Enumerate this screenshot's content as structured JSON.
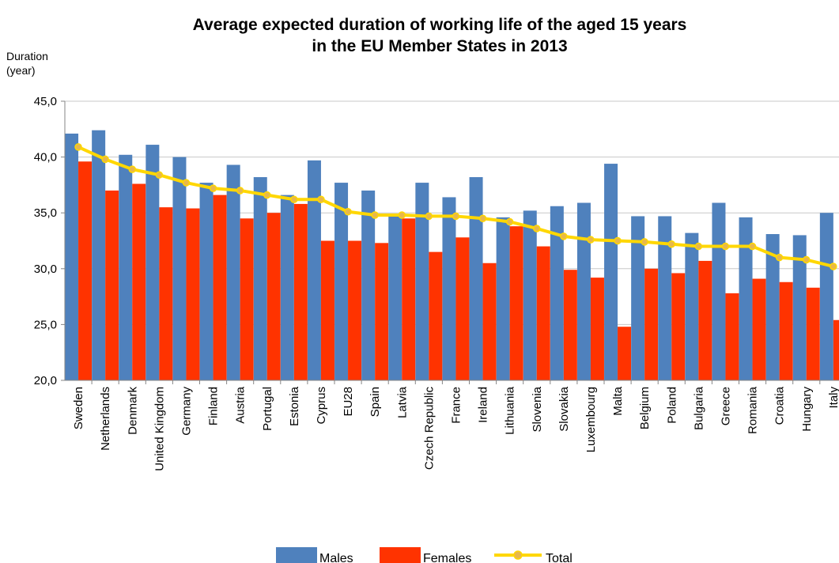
{
  "chart_data": {
    "type": "bar",
    "title_line1": "Average expected duration of working life of the aged 15 years",
    "title_line2": "in the EU Member States in 2013",
    "ylabel_line1": "Duration",
    "ylabel_line2": "(year)",
    "xlabel": "",
    "ylim": [
      20,
      45
    ],
    "yticks": [
      "45,0",
      "40,0",
      "35,0",
      "30,0",
      "25,0",
      "20,0"
    ],
    "grid": true,
    "legend_position": "bottom",
    "categories": [
      "Sweden",
      "Netherlands",
      "Denmark",
      "United Kingdom",
      "Germany",
      "Finland",
      "Austria",
      "Portugal",
      "Estonia",
      "Cyprus",
      "EU28",
      "Spain",
      "Latvia",
      "Czech Republic",
      "France",
      "Ireland",
      "Lithuania",
      "Slovenia",
      "Slovakia",
      "Luxembourg",
      "Malta",
      "Belgium",
      "Poland",
      "Bulgaria",
      "Greece",
      "Romania",
      "Croatia",
      "Hungary",
      "Italy"
    ],
    "series": [
      {
        "name": "Males",
        "kind": "bar",
        "color": "#4F81BD",
        "values": [
          42.1,
          42.4,
          40.2,
          41.1,
          40.0,
          37.7,
          39.3,
          38.2,
          36.6,
          39.7,
          37.7,
          37.0,
          34.9,
          37.7,
          36.4,
          38.2,
          34.6,
          35.2,
          35.6,
          35.9,
          39.4,
          34.7,
          34.7,
          33.2,
          35.9,
          34.6,
          33.1,
          33.0,
          35.0
        ]
      },
      {
        "name": "Females",
        "kind": "bar",
        "color": "#FF3300",
        "values": [
          39.6,
          37.0,
          37.6,
          35.5,
          35.4,
          36.6,
          34.5,
          35.0,
          35.8,
          32.5,
          32.5,
          32.3,
          34.5,
          31.5,
          32.8,
          30.5,
          33.8,
          32.0,
          29.9,
          29.2,
          24.8,
          30.0,
          29.6,
          30.7,
          27.8,
          29.1,
          28.8,
          28.3,
          25.4
        ]
      },
      {
        "name": "Total",
        "kind": "line",
        "color": "#FFD700",
        "values": [
          40.9,
          39.8,
          38.9,
          38.4,
          37.7,
          37.2,
          37.0,
          36.6,
          36.2,
          36.2,
          35.1,
          34.8,
          34.8,
          34.7,
          34.7,
          34.5,
          34.2,
          33.6,
          32.9,
          32.6,
          32.5,
          32.4,
          32.2,
          32.0,
          32.0,
          32.0,
          31.0,
          30.8,
          30.2
        ]
      }
    ]
  }
}
